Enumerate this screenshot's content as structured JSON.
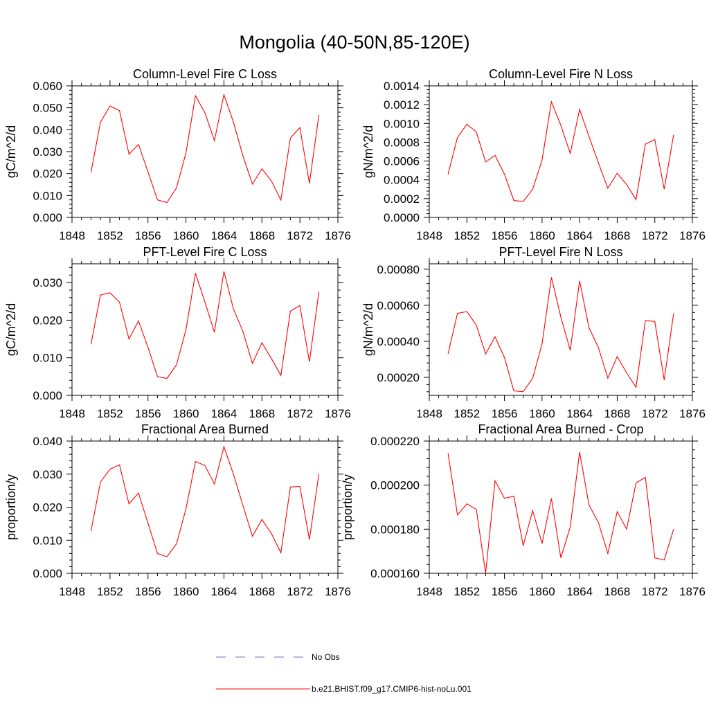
{
  "title": "Mongolia (40-50N,85-120E)",
  "colors": {
    "series": "#ff0000",
    "obs": "#6f6fbf",
    "axis": "#000000"
  },
  "legend": [
    {
      "label": "No Obs",
      "style": "dashed",
      "color": "#6f6fbf"
    },
    {
      "label": "b.e21.BHIST.f09_g17.CMIP6-hist-noLu.001",
      "style": "solid",
      "color": "#ff0000"
    }
  ],
  "chart_data": [
    {
      "type": "line",
      "title": "Column-Level Fire C Loss",
      "ylabel": "gC/m^2/d",
      "xlim": [
        1848,
        1876
      ],
      "xticks": [
        "1848",
        "1852",
        "1856",
        "1860",
        "1864",
        "1868",
        "1872",
        "1876"
      ],
      "ylim": [
        0,
        0.06
      ],
      "yticks": [
        "0.000",
        "0.010",
        "0.020",
        "0.030",
        "0.040",
        "0.050",
        "0.060"
      ],
      "x": [
        1850,
        1851,
        1852,
        1853,
        1854,
        1855,
        1856,
        1857,
        1858,
        1859,
        1860,
        1861,
        1862,
        1863,
        1864,
        1865,
        1866,
        1867,
        1868,
        1869,
        1870,
        1871,
        1872,
        1873,
        1874
      ],
      "series": [
        {
          "name": "b.e21.BHIST.f09_g17.CMIP6-hist-noLu.001",
          "values": [
            0.0205,
            0.0435,
            0.0508,
            0.0487,
            0.0288,
            0.0333,
            0.0208,
            0.008,
            0.0068,
            0.0135,
            0.0295,
            0.0555,
            0.0477,
            0.035,
            0.056,
            0.0435,
            0.028,
            0.0152,
            0.0222,
            0.0166,
            0.0079,
            0.0362,
            0.041,
            0.0155,
            0.0468
          ]
        }
      ]
    },
    {
      "type": "line",
      "title": "Column-Level Fire N Loss",
      "ylabel": "gN/m^2/d",
      "xlim": [
        1848,
        1876
      ],
      "xticks": [
        "1848",
        "1852",
        "1856",
        "1860",
        "1864",
        "1868",
        "1872",
        "1876"
      ],
      "ylim": [
        0,
        0.0014
      ],
      "yticks": [
        "0.0000",
        "0.0002",
        "0.0004",
        "0.0006",
        "0.0008",
        "0.0010",
        "0.0012",
        "0.0014"
      ],
      "x": [
        1850,
        1851,
        1852,
        1853,
        1854,
        1855,
        1856,
        1857,
        1858,
        1859,
        1860,
        1861,
        1862,
        1863,
        1864,
        1865,
        1866,
        1867,
        1868,
        1869,
        1870,
        1871,
        1872,
        1873,
        1874
      ],
      "series": [
        {
          "name": "b.e21.BHIST.f09_g17.CMIP6-hist-noLu.001",
          "values": [
            0.00046,
            0.00085,
            0.00099,
            0.00091,
            0.00059,
            0.00066,
            0.00046,
            0.00018,
            0.00017,
            0.0003,
            0.00061,
            0.00123,
            0.00098,
            0.00068,
            0.00115,
            0.00086,
            0.00058,
            0.00031,
            0.00047,
            0.00035,
            0.00019,
            0.00078,
            0.00083,
            0.0003,
            0.00088
          ]
        }
      ]
    },
    {
      "type": "line",
      "title": "PFT-Level Fire C Loss",
      "ylabel": "gC/m^2/d",
      "xlim": [
        1848,
        1876
      ],
      "xticks": [
        "1848",
        "1852",
        "1856",
        "1860",
        "1864",
        "1868",
        "1872",
        "1876"
      ],
      "ylim": [
        0,
        0.035
      ],
      "yticks": [
        "0.000",
        "0.010",
        "0.020",
        "0.030"
      ],
      "ytick_values": [
        0,
        0.01,
        0.02,
        0.03
      ],
      "x": [
        1850,
        1851,
        1852,
        1853,
        1854,
        1855,
        1856,
        1857,
        1858,
        1859,
        1860,
        1861,
        1862,
        1863,
        1864,
        1865,
        1866,
        1867,
        1868,
        1869,
        1870,
        1871,
        1872,
        1873,
        1874
      ],
      "series": [
        {
          "name": "b.e21.BHIST.f09_g17.CMIP6-hist-noLu.001",
          "values": [
            0.0136,
            0.0267,
            0.0273,
            0.0248,
            0.015,
            0.0198,
            0.0128,
            0.005,
            0.0045,
            0.0081,
            0.0175,
            0.0325,
            0.0248,
            0.0168,
            0.033,
            0.023,
            0.017,
            0.0085,
            0.014,
            0.0098,
            0.0053,
            0.0224,
            0.0239,
            0.0089,
            0.0276
          ]
        }
      ]
    },
    {
      "type": "line",
      "title": "PFT-Level Fire N Loss",
      "ylabel": "gN/m^2/d",
      "xlim": [
        1848,
        1876
      ],
      "xticks": [
        "1848",
        "1852",
        "1856",
        "1860",
        "1864",
        "1868",
        "1872",
        "1876"
      ],
      "ylim": [
        0.0001,
        0.00083
      ],
      "yticks": [
        "0.00020",
        "0.00040",
        "0.00060",
        "0.00080"
      ],
      "ytick_values": [
        0.0002,
        0.0004,
        0.0006,
        0.0008
      ],
      "x": [
        1850,
        1851,
        1852,
        1853,
        1854,
        1855,
        1856,
        1857,
        1858,
        1859,
        1860,
        1861,
        1862,
        1863,
        1864,
        1865,
        1866,
        1867,
        1868,
        1869,
        1870,
        1871,
        1872,
        1873,
        1874
      ],
      "series": [
        {
          "name": "b.e21.BHIST.f09_g17.CMIP6-hist-noLu.001",
          "values": [
            0.00033,
            0.000555,
            0.000565,
            0.00049,
            0.00033,
            0.000425,
            0.00031,
            0.000125,
            0.00012,
            0.000195,
            0.000385,
            0.000755,
            0.000535,
            0.00035,
            0.000735,
            0.000475,
            0.000365,
            0.000195,
            0.000315,
            0.000225,
            0.000145,
            0.000515,
            0.00051,
            0.000185,
            0.000555
          ]
        }
      ]
    },
    {
      "type": "line",
      "title": "Fractional Area Burned",
      "ylabel": "proportion/y",
      "xlim": [
        1848,
        1876
      ],
      "xticks": [
        "1848",
        "1852",
        "1856",
        "1860",
        "1864",
        "1868",
        "1872",
        "1876"
      ],
      "ylim": [
        0,
        0.04
      ],
      "yticks": [
        "0.000",
        "0.010",
        "0.020",
        "0.030",
        "0.040"
      ],
      "x": [
        1850,
        1851,
        1852,
        1853,
        1854,
        1855,
        1856,
        1857,
        1858,
        1859,
        1860,
        1861,
        1862,
        1863,
        1864,
        1865,
        1866,
        1867,
        1868,
        1869,
        1870,
        1871,
        1872,
        1873,
        1874
      ],
      "series": [
        {
          "name": "b.e21.BHIST.f09_g17.CMIP6-hist-noLu.001",
          "values": [
            0.0128,
            0.0276,
            0.0315,
            0.0328,
            0.021,
            0.0243,
            0.0152,
            0.006,
            0.005,
            0.0089,
            0.0195,
            0.0338,
            0.0326,
            0.027,
            0.0383,
            0.03,
            0.0205,
            0.0112,
            0.0163,
            0.012,
            0.0062,
            0.0261,
            0.0263,
            0.0102,
            0.0301
          ]
        }
      ]
    },
    {
      "type": "line",
      "title": "Fractional Area Burned - Crop",
      "ylabel": "proportion/y",
      "xlim": [
        1848,
        1876
      ],
      "xticks": [
        "1848",
        "1852",
        "1856",
        "1860",
        "1864",
        "1868",
        "1872",
        "1876"
      ],
      "ylim": [
        0.00016,
        0.00022
      ],
      "yticks": [
        "0.000160",
        "0.000180",
        "0.000200",
        "0.000220"
      ],
      "ytick_values": [
        0.00016,
        0.00018,
        0.0002,
        0.00022
      ],
      "x": [
        1850,
        1851,
        1852,
        1853,
        1854,
        1855,
        1856,
        1857,
        1858,
        1859,
        1860,
        1861,
        1862,
        1863,
        1864,
        1865,
        1866,
        1867,
        1868,
        1869,
        1870,
        1871,
        1872,
        1873,
        1874
      ],
      "series": [
        {
          "name": "b.e21.BHIST.f09_g17.CMIP6-hist-noLu.001",
          "values": [
            0.0002145,
            0.0001865,
            0.0001915,
            0.000189,
            0.00016,
            0.000202,
            0.000194,
            0.000195,
            0.0001725,
            0.0001885,
            0.0001735,
            0.000194,
            0.000167,
            0.000181,
            0.000215,
            0.000191,
            0.000183,
            0.000169,
            0.000188,
            0.00018,
            0.000201,
            0.0002035,
            0.000167,
            0.000166,
            0.00018
          ]
        }
      ]
    }
  ]
}
